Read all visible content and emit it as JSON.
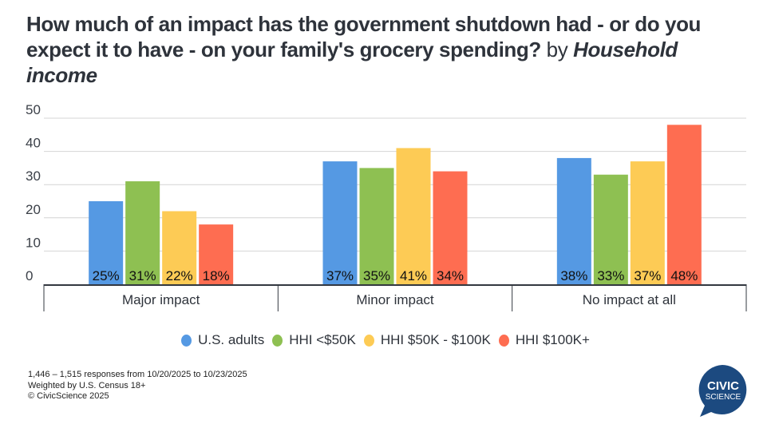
{
  "title": {
    "main": "How much of an impact has the government shutdown had - or do you expect it to have - on your family's grocery spending?",
    "by": "by",
    "dimension": "Household income"
  },
  "chart_data": {
    "type": "bar",
    "title": "How much of an impact has the government shutdown had - or do you expect it to have - on your family's grocery spending? by Household income",
    "xlabel": "",
    "ylabel": "",
    "categories": [
      "Major impact",
      "Minor impact",
      "No impact at all"
    ],
    "series": [
      {
        "name": "U.S. adults",
        "color": "#5599e3",
        "values": [
          25,
          37,
          38
        ]
      },
      {
        "name": "HHI <$50K",
        "color": "#8ec052",
        "values": [
          31,
          35,
          33
        ]
      },
      {
        "name": "HHI $50K - $100K",
        "color": "#fdcb55",
        "values": [
          22,
          41,
          37
        ]
      },
      {
        "name": "HHI $100K+",
        "color": "#fe6d51",
        "values": [
          18,
          34,
          48
        ]
      }
    ],
    "data_labels": [
      [
        "25%",
        "37%",
        "38%"
      ],
      [
        "31%",
        "35%",
        "33%"
      ],
      [
        "22%",
        "41%",
        "37%"
      ],
      [
        "18%",
        "34%",
        "48%"
      ]
    ],
    "yticks": [
      0,
      10,
      20,
      30,
      40,
      50
    ],
    "ylim": [
      0,
      50
    ],
    "grid": true,
    "legend_position": "bottom"
  },
  "legend": [
    {
      "label": "U.S. adults",
      "color": "#5599e3"
    },
    {
      "label": "HHI <$50K",
      "color": "#8ec052"
    },
    {
      "label": "HHI $50K - $100K",
      "color": "#fdcb55"
    },
    {
      "label": "HHI $100K+",
      "color": "#fe6d51"
    }
  ],
  "footer": {
    "line1": "1,446 – 1,515 responses from 10/20/2025 to 10/23/2025",
    "line2": "Weighted by U.S. Census 18+",
    "line3": "© CivicScience 2025"
  },
  "logo": {
    "line1": "CIVIC",
    "line2": "SCIENCE",
    "color": "#1c4a80"
  }
}
